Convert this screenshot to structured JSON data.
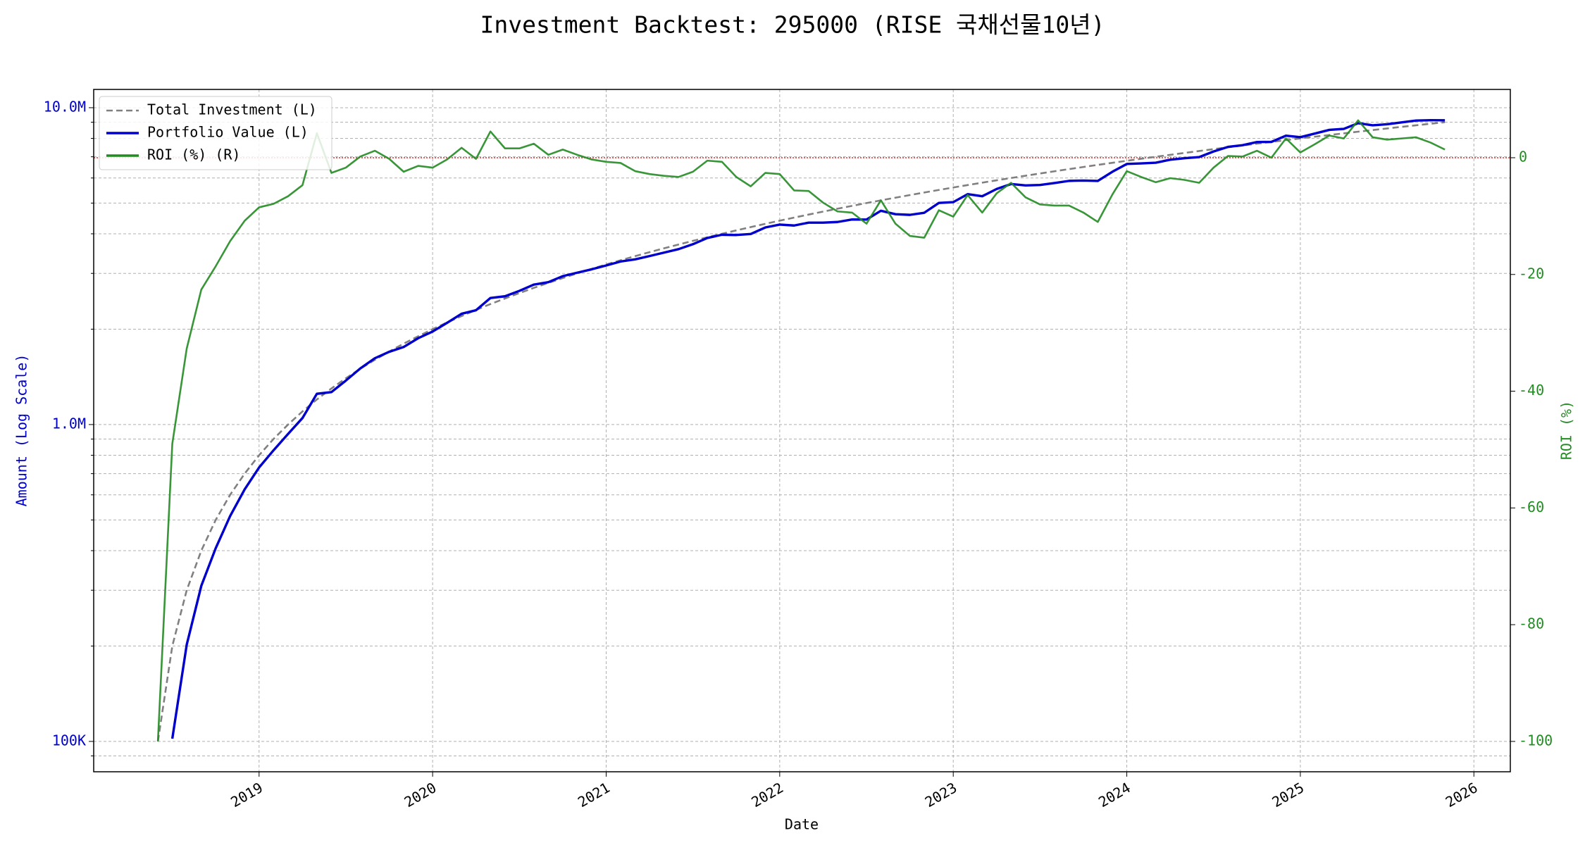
{
  "chart_data": {
    "type": "line",
    "title": "Investment Backtest: 295000 (RISE 국채선물10년)",
    "xlabel": "Date",
    "ylabel": "Amount (Log Scale)",
    "y2label": "ROI (%)",
    "ylabel_color": "#0000cc",
    "y2label_color": "#228b22",
    "log_y": true,
    "grid": true,
    "legend": "upper left",
    "xlim": [
      2018.047,
      2026.21
    ],
    "xticks": [
      2019,
      2020,
      2021,
      2022,
      2023,
      2024,
      2025,
      2026
    ],
    "ylim": [
      80200,
      11420000
    ],
    "yticks": [
      {
        "value": 100000,
        "label": "100K"
      },
      {
        "value": 1000000,
        "label": "1.0M"
      },
      {
        "value": 10000000,
        "label": "10.0M"
      }
    ],
    "yminorticks": [
      90000,
      200000,
      300000,
      400000,
      500000,
      600000,
      700000,
      800000,
      900000,
      2000000,
      3000000,
      4000000,
      5000000,
      6000000,
      7000000,
      8000000,
      9000000
    ],
    "y2lim": [
      -105.2,
      11.7
    ],
    "y2ticks": [
      -100,
      -80,
      -60,
      -40,
      -20,
      0
    ],
    "hline": {
      "axis": "y2",
      "value": 0,
      "color": "#e03030"
    },
    "x": [
      2018.417,
      2018.5,
      2018.583,
      2018.667,
      2018.75,
      2018.833,
      2018.917,
      2019.0,
      2019.083,
      2019.167,
      2019.25,
      2019.333,
      2019.417,
      2019.5,
      2019.583,
      2019.667,
      2019.75,
      2019.833,
      2019.917,
      2020.0,
      2020.083,
      2020.167,
      2020.25,
      2020.333,
      2020.417,
      2020.5,
      2020.583,
      2020.667,
      2020.75,
      2020.833,
      2020.917,
      2021.0,
      2021.083,
      2021.167,
      2021.25,
      2021.333,
      2021.417,
      2021.5,
      2021.583,
      2021.667,
      2021.75,
      2021.833,
      2021.917,
      2022.0,
      2022.083,
      2022.167,
      2022.25,
      2022.333,
      2022.417,
      2022.5,
      2022.583,
      2022.667,
      2022.75,
      2022.833,
      2022.917,
      2023.0,
      2023.083,
      2023.167,
      2023.25,
      2023.333,
      2023.417,
      2023.5,
      2023.583,
      2023.667,
      2023.75,
      2023.833,
      2023.917,
      2024.0,
      2024.083,
      2024.167,
      2024.25,
      2024.333,
      2024.417,
      2024.5,
      2024.583,
      2024.667,
      2024.75,
      2024.833,
      2024.917,
      2025.0,
      2025.083,
      2025.167,
      2025.25,
      2025.333,
      2025.417,
      2025.5,
      2025.583,
      2025.667,
      2025.75,
      2025.833
    ],
    "series": [
      {
        "name": "Total Investment (L)",
        "color": "#808080",
        "dash": true,
        "axis": "y",
        "values": [
          100000,
          200000,
          300000,
          400000,
          500000,
          600000,
          700000,
          800000,
          900000,
          1000000,
          1100000,
          1200000,
          1300000,
          1400000,
          1500000,
          1600000,
          1700000,
          1800000,
          1900000,
          2000000,
          2100000,
          2200000,
          2300000,
          2400000,
          2500000,
          2600000,
          2700000,
          2800000,
          2900000,
          3000000,
          3100000,
          3200000,
          3300000,
          3400000,
          3500000,
          3600000,
          3700000,
          3800000,
          3900000,
          4000000,
          4100000,
          4200000,
          4300000,
          4400000,
          4500000,
          4600000,
          4700000,
          4800000,
          4900000,
          5000000,
          5100000,
          5200000,
          5300000,
          5400000,
          5500000,
          5600000,
          5700000,
          5800000,
          5900000,
          6000000,
          6100000,
          6200000,
          6300000,
          6400000,
          6500000,
          6600000,
          6700000,
          6800000,
          6900000,
          7000000,
          7100000,
          7200000,
          7300000,
          7400000,
          7500000,
          7600000,
          7700000,
          7800000,
          7900000,
          8000000,
          8100000,
          8200000,
          8300000,
          8400000,
          8500000,
          8600000,
          8700000,
          8800000,
          8900000,
          9000000
        ]
      },
      {
        "name": "Portfolio Value (L)",
        "color": "#0000cc",
        "dash": false,
        "axis": "y",
        "values": [
          null,
          102000,
          201900,
          309600,
          407000,
          514200,
          624400,
          732000,
          828900,
          934000,
          1048300,
          1250400,
          1266200,
          1376200,
          1503000,
          1619200,
          1696600,
          1756800,
          1873400,
          1966000,
          2093700,
          2237400,
          2295400,
          2508000,
          2540000,
          2641600,
          2764800,
          2814000,
          2940600,
          3015000,
          3090700,
          3177600,
          3270300,
          3321800,
          3402000,
          3488400,
          3577900,
          3708800,
          3880500,
          3972000,
          3964700,
          3994200,
          4188200,
          4276800,
          4248000,
          4337800,
          4338100,
          4358400,
          4439400,
          4435000,
          4727700,
          4612400,
          4589800,
          4660200,
          5005000,
          5034400,
          5335200,
          5254800,
          5540100,
          5742000,
          5685200,
          5704000,
          5783400,
          5875200,
          5889000,
          5874000,
          6277900,
          6643600,
          6672300,
          6706000,
          6851500,
          6926400,
          6986100,
          7274200,
          7522500,
          7615200,
          7792400,
          7800000,
          8160700,
          8072000,
          8286300,
          8511600,
          8573900,
          8937600,
          8797500,
          8866600,
          8987100,
          9108000,
          9131400,
          9126000
        ]
      },
      {
        "name": "ROI (%) (R)",
        "color": "#228b22",
        "dash": false,
        "axis": "y2",
        "values": [
          -100,
          -49,
          -32.7,
          -22.6,
          -18.6,
          -14.3,
          -10.8,
          -8.5,
          -7.9,
          -6.6,
          -4.7,
          4.2,
          -2.6,
          -1.7,
          0.2,
          1.2,
          -0.2,
          -2.4,
          -1.4,
          -1.7,
          -0.3,
          1.7,
          -0.2,
          4.5,
          1.6,
          1.6,
          2.4,
          0.5,
          1.4,
          0.5,
          -0.3,
          -0.7,
          -0.9,
          -2.3,
          -2.8,
          -3.1,
          -3.3,
          -2.4,
          -0.5,
          -0.7,
          -3.3,
          -4.9,
          -2.6,
          -2.8,
          -5.6,
          -5.7,
          -7.7,
          -9.2,
          -9.4,
          -11.3,
          -7.3,
          -11.3,
          -13.4,
          -13.7,
          -9.0,
          -10.1,
          -6.4,
          -9.4,
          -6.1,
          -4.3,
          -6.8,
          -8.0,
          -8.2,
          -8.2,
          -9.4,
          -11.0,
          -6.3,
          -2.3,
          -3.3,
          -4.2,
          -3.5,
          -3.8,
          -4.3,
          -1.7,
          0.3,
          0.2,
          1.2,
          0,
          3.3,
          0.9,
          2.3,
          3.8,
          3.3,
          6.4,
          3.5,
          3.1,
          3.3,
          3.5,
          2.6,
          1.4
        ]
      }
    ]
  }
}
